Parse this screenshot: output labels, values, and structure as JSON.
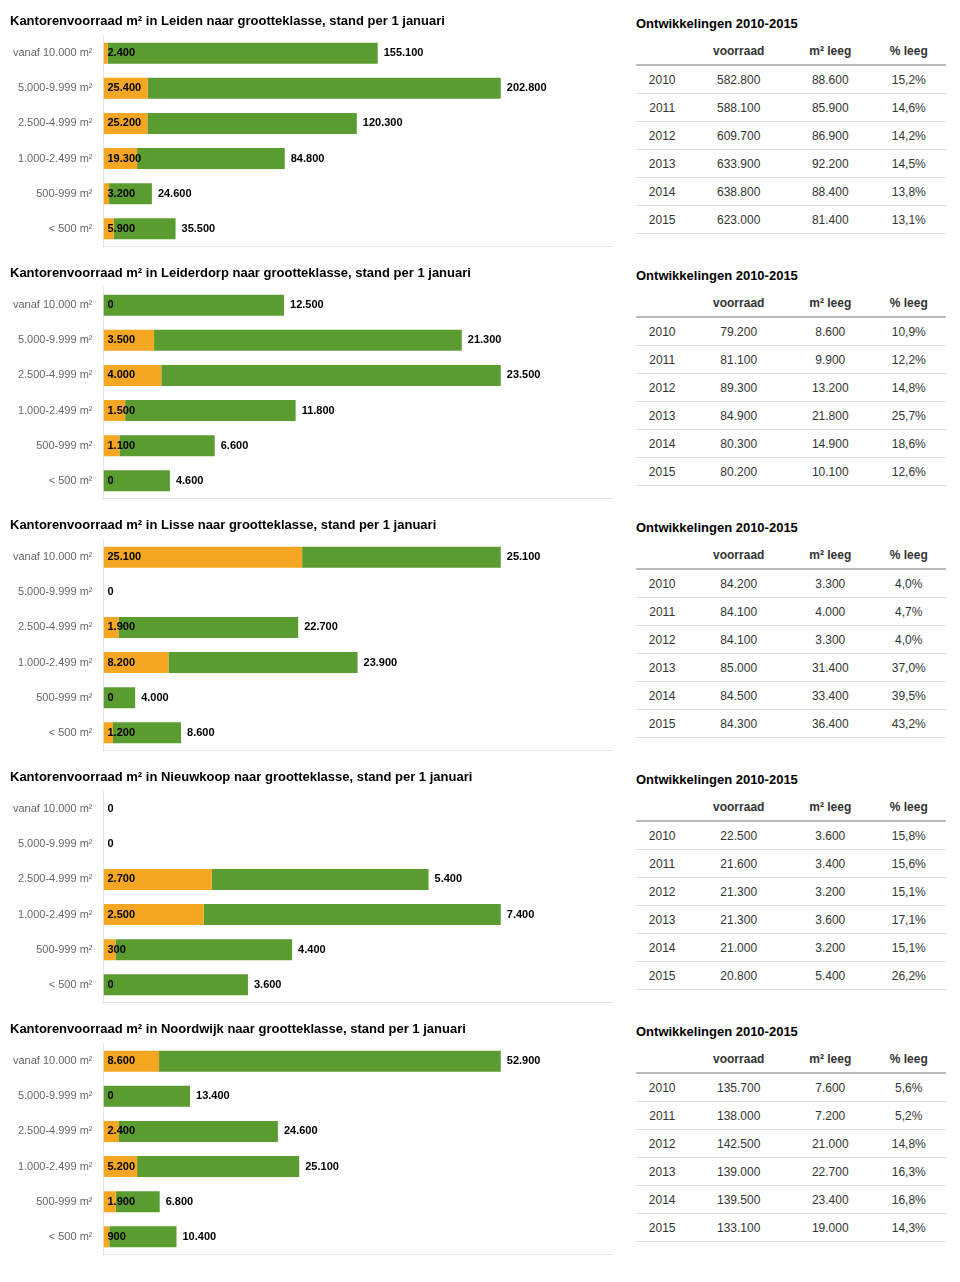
{
  "chart_data": [
    {
      "type": "bar",
      "orientation": "horizontal",
      "stacked": true,
      "data_labels": true,
      "grid": false,
      "tick_labels": "y",
      "title": "Kantorenvoorraad m² in Leiden naar grootteklasse, stand per 1 januari",
      "categories": [
        "vanaf 10.000 m²",
        "5.000-9.999 m²",
        "2.500-4.999 m²",
        "1.000-2.499 m²",
        "500-999 m²",
        "< 500 m²"
      ],
      "series": [
        {
          "color": "#F5A623",
          "values": [
            2400,
            25400,
            25200,
            19300,
            3200,
            5900
          ],
          "value_labels": [
            "2.400",
            "25.400",
            "25.200",
            "19.300",
            "3.200",
            "5.900"
          ]
        },
        {
          "color": "#5B9C30",
          "values": [
            155100,
            202800,
            120300,
            84800,
            24600,
            35500
          ],
          "value_labels": [
            "155.100",
            "202.800",
            "120.300",
            "84.800",
            "24.600",
            "35.500"
          ]
        }
      ],
      "xlim": [
        0,
        292096
      ],
      "table": {
        "title": "Ontwikkelingen 2010-2015",
        "columns": [
          null,
          "voorraad",
          "m² leeg",
          "% leeg"
        ],
        "rows": [
          [
            "2010",
            "582.800",
            "88.600",
            "15,2%"
          ],
          [
            "2011",
            "588.100",
            "85.900",
            "14,6%"
          ],
          [
            "2012",
            "609.700",
            "86.900",
            "14,2%"
          ],
          [
            "2013",
            "633.900",
            "92.200",
            "14,5%"
          ],
          [
            "2014",
            "638.800",
            "88.400",
            "13,8%"
          ],
          [
            "2015",
            "623.000",
            "81.400",
            "13,1%"
          ]
        ]
      }
    },
    {
      "type": "bar",
      "orientation": "horizontal",
      "stacked": true,
      "data_labels": true,
      "grid": false,
      "tick_labels": "y",
      "title": "Kantorenvoorraad m² in Leiderdorp naar grootteklasse, stand per 1 januari",
      "categories": [
        "vanaf 10.000 m²",
        "5.000-9.999 m²",
        "2.500-4.999 m²",
        "1.000-2.499 m²",
        "500-999 m²",
        "< 500 m²"
      ],
      "series": [
        {
          "color": "#F5A623",
          "values": [
            0,
            3500,
            4000,
            1500,
            1100,
            0
          ],
          "value_labels": [
            "0",
            "3.500",
            "4.000",
            "1.500",
            "1.100",
            "0"
          ]
        },
        {
          "color": "#5B9C30",
          "values": [
            12500,
            21300,
            23500,
            11800,
            6600,
            4600
          ],
          "value_labels": [
            "12.500",
            "21.300",
            "23.500",
            "11.800",
            "6.600",
            "4.600"
          ]
        }
      ],
      "xlim": [
        0,
        35200
      ],
      "table": {
        "title": "Ontwikkelingen 2010-2015",
        "columns": [
          null,
          "voorraad",
          "m² leeg",
          "% leeg"
        ],
        "rows": [
          [
            "2010",
            "79.200",
            "8.600",
            "10,9%"
          ],
          [
            "2011",
            "81.100",
            "9.900",
            "12,2%"
          ],
          [
            "2012",
            "89.300",
            "13.200",
            "14,8%"
          ],
          [
            "2013",
            "84.900",
            "21.800",
            "25,7%"
          ],
          [
            "2014",
            "80.300",
            "14.900",
            "18,6%"
          ],
          [
            "2015",
            "80.200",
            "10.100",
            "12,6%"
          ]
        ]
      }
    },
    {
      "type": "bar",
      "orientation": "horizontal",
      "stacked": true,
      "data_labels": true,
      "grid": false,
      "tick_labels": "y",
      "title": "Kantorenvoorraad m² in Lisse naar grootteklasse, stand per 1 januari",
      "categories": [
        "vanaf 10.000 m²",
        "5.000-9.999 m²",
        "2.500-4.999 m²",
        "1.000-2.499 m²",
        "500-999 m²",
        "< 500 m²"
      ],
      "series": [
        {
          "color": "#F5A623",
          "values": [
            25100,
            0,
            1900,
            8200,
            0,
            1200
          ],
          "value_labels": [
            "25.100",
            "0",
            "1.900",
            "8.200",
            "0",
            "1.200"
          ]
        },
        {
          "color": "#5B9C30",
          "values": [
            25100,
            0,
            22700,
            23900,
            4000,
            8600
          ],
          "value_labels": [
            "25.100",
            null,
            "22.700",
            "23.900",
            "4.000",
            "8.600"
          ]
        }
      ],
      "xlim": [
        0,
        64256
      ],
      "table": {
        "title": "Ontwikkelingen 2010-2015",
        "columns": [
          null,
          "voorraad",
          "m² leeg",
          "% leeg"
        ],
        "rows": [
          [
            "2010",
            "84.200",
            "3.300",
            "4,0%"
          ],
          [
            "2011",
            "84.100",
            "4.000",
            "4,7%"
          ],
          [
            "2012",
            "84.100",
            "3.300",
            "4,0%"
          ],
          [
            "2013",
            "85.000",
            "31.400",
            "37,0%"
          ],
          [
            "2014",
            "84.500",
            "33.400",
            "39,5%"
          ],
          [
            "2015",
            "84.300",
            "36.400",
            "43,2%"
          ]
        ]
      }
    },
    {
      "type": "bar",
      "orientation": "horizontal",
      "stacked": true,
      "data_labels": true,
      "grid": false,
      "tick_labels": "y",
      "title": "Kantorenvoorraad m² in Nieuwkoop naar grootteklasse, stand per 1 januari",
      "categories": [
        "vanaf 10.000 m²",
        "5.000-9.999 m²",
        "2.500-4.999 m²",
        "1.000-2.499 m²",
        "500-999 m²",
        "< 500 m²"
      ],
      "series": [
        {
          "color": "#F5A623",
          "values": [
            0,
            0,
            2700,
            2500,
            300,
            0
          ],
          "value_labels": [
            "0",
            "0",
            "2.700",
            "2.500",
            "300",
            "0"
          ]
        },
        {
          "color": "#5B9C30",
          "values": [
            0,
            0,
            5400,
            7400,
            4400,
            3600
          ],
          "value_labels": [
            null,
            null,
            "5.400",
            "7.400",
            "4.400",
            "3.600"
          ]
        }
      ],
      "xlim": [
        0,
        12672
      ],
      "table": {
        "title": "Ontwikkelingen 2010-2015",
        "columns": [
          null,
          "voorraad",
          "m² leeg",
          "% leeg"
        ],
        "rows": [
          [
            "2010",
            "22.500",
            "3.600",
            "15,8%"
          ],
          [
            "2011",
            "21.600",
            "3.400",
            "15,6%"
          ],
          [
            "2012",
            "21.300",
            "3.200",
            "15,1%"
          ],
          [
            "2013",
            "21.300",
            "3.600",
            "17,1%"
          ],
          [
            "2014",
            "21.000",
            "3.200",
            "15,1%"
          ],
          [
            "2015",
            "20.800",
            "5.400",
            "26,2%"
          ]
        ]
      }
    },
    {
      "type": "bar",
      "orientation": "horizontal",
      "stacked": true,
      "data_labels": true,
      "grid": false,
      "tick_labels": "y",
      "title": "Kantorenvoorraad m² in Noordwijk naar grootteklasse, stand per 1 januari",
      "categories": [
        "vanaf 10.000 m²",
        "5.000-9.999 m²",
        "2.500-4.999 m²",
        "1.000-2.499 m²",
        "500-999 m²",
        "< 500 m²"
      ],
      "series": [
        {
          "color": "#F5A623",
          "values": [
            8600,
            0,
            2400,
            5200,
            1900,
            900
          ],
          "value_labels": [
            "8.600",
            "0",
            "2.400",
            "5.200",
            "1.900",
            "900"
          ]
        },
        {
          "color": "#5B9C30",
          "values": [
            52900,
            13400,
            24600,
            25100,
            6800,
            10400
          ],
          "value_labels": [
            "52.900",
            "13.400",
            "24.600",
            "25.100",
            "6.800",
            "10.400"
          ]
        }
      ],
      "xlim": [
        0,
        78720
      ],
      "table": {
        "title": "Ontwikkelingen 2010-2015",
        "columns": [
          null,
          "voorraad",
          "m² leeg",
          "% leeg"
        ],
        "rows": [
          [
            "2010",
            "135.700",
            "7.600",
            "5,6%"
          ],
          [
            "2011",
            "138.000",
            "7.200",
            "5,2%"
          ],
          [
            "2012",
            "142.500",
            "21.000",
            "14,8%"
          ],
          [
            "2013",
            "139.000",
            "22.700",
            "16,3%"
          ],
          [
            "2014",
            "139.500",
            "23.400",
            "16,8%"
          ],
          [
            "2015",
            "133.100",
            "19.000",
            "14,3%"
          ]
        ]
      }
    }
  ]
}
